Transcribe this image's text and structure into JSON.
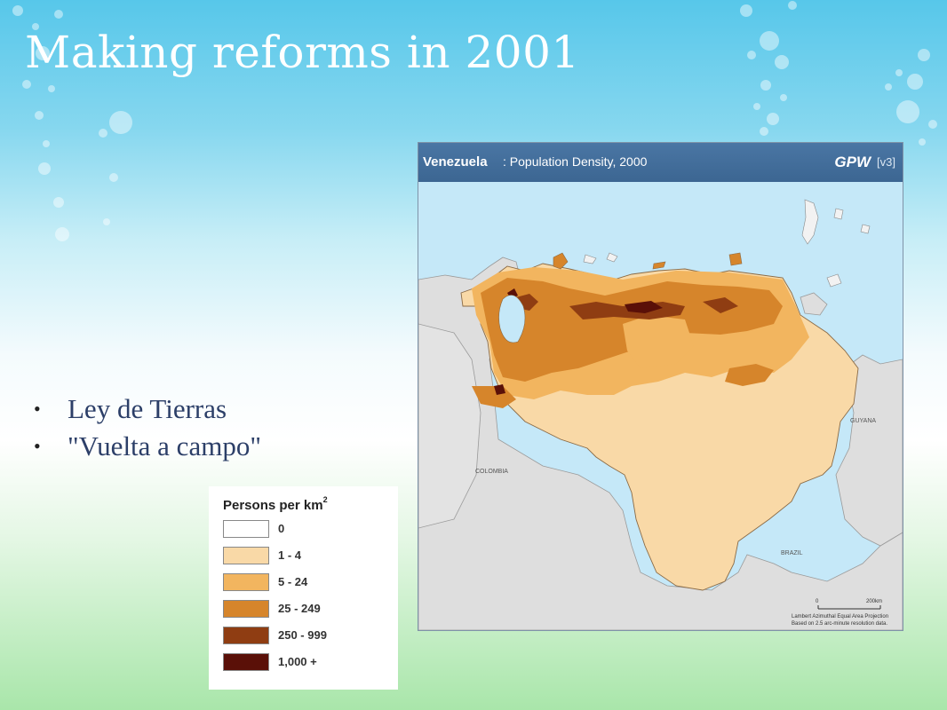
{
  "slide": {
    "title": "Making reforms in 2001",
    "bullets": [
      "Ley de Tierras",
      "\"Vuelta a campo\""
    ]
  },
  "map": {
    "country": "Venezuela",
    "subtitle": ": Population Density, 2000",
    "brand": "GPW",
    "version": "[v3]",
    "labels": {
      "colombia": "COLOMBIA",
      "guyana": "GUYANA",
      "brazil": "BRAZIL"
    },
    "scale": {
      "zero": "0",
      "distance": "200km",
      "projection": "Lambert Azimuthal Equal Area Projection",
      "resolution": "Based on 2.5 arc-minute resolution data."
    }
  },
  "legend": {
    "title": "Persons per km",
    "title_sup": "2",
    "items": [
      {
        "label": "0",
        "color": "#ffffff"
      },
      {
        "label": "1 - 4",
        "color": "#f9d9a7"
      },
      {
        "label": "5 - 24",
        "color": "#f2b55f"
      },
      {
        "label": "25 - 249",
        "color": "#d6852b"
      },
      {
        "label": "250 - 999",
        "color": "#8f3d12"
      },
      {
        "label": "1,000 +",
        "color": "#5a1008"
      }
    ]
  },
  "colors": {
    "title_text": "#ffffff",
    "bullet_text": "#2c3f68",
    "map_header": "#3c6692",
    "sea": "#c5e8f8",
    "land_neighbor": "#dedede"
  }
}
